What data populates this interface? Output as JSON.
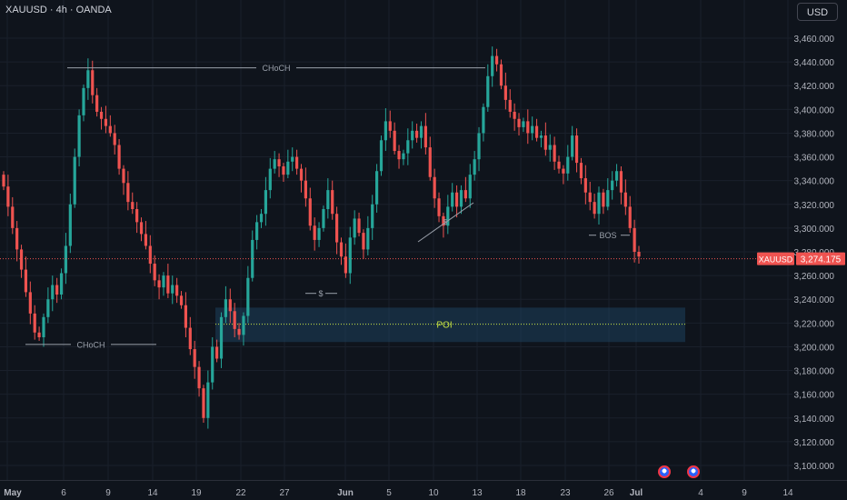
{
  "header": {
    "symbol_info": "XAUUSD · 4h · OANDA",
    "currency_button": "USD"
  },
  "price_tag": {
    "symbol": "XAUUSD",
    "value": "3,274.175"
  },
  "colors": {
    "bg": "#0f141c",
    "up": "#26a69a",
    "down": "#ef5350",
    "grid": "#1a202b",
    "axis_text": "#b2b5be",
    "price_line": "#ef5350",
    "poi_zone": "#1e4a6b",
    "poi_line": "#c6e142",
    "annotation": "#9aa0aa"
  },
  "icons": [
    "us-flag-icon",
    "us-flag-icon"
  ],
  "chart_data": {
    "type": "candlestick",
    "title": "XAUUSD · 4h · OANDA",
    "ylim": [
      3090,
      3470
    ],
    "y_ticks": [
      3100,
      3120,
      3140,
      3160,
      3180,
      3200,
      3220,
      3240,
      3260,
      3280,
      3300,
      3320,
      3340,
      3360,
      3380,
      3400,
      3420,
      3440,
      3460
    ],
    "y_tick_labels": [
      "3,100.000",
      "3,120.000",
      "3,140.000",
      "3,160.000",
      "3,180.000",
      "3,200.000",
      "3,220.000",
      "3,240.000",
      "3,260.000",
      "3,280.000",
      "3,300.000",
      "3,320.000",
      "3,340.000",
      "3,360.000",
      "3,380.000",
      "3,400.000",
      "3,420.000",
      "3,440.000",
      "3,460.000"
    ],
    "x_labels": [
      "May",
      "6",
      "9",
      "14",
      "19",
      "22",
      "27",
      "Jun",
      "5",
      "10",
      "13",
      "18",
      "23",
      "26",
      "Jul",
      "4",
      "9",
      "14"
    ],
    "last_price": 3274.175,
    "closes": [
      3335,
      3318,
      3300,
      3282,
      3265,
      3246,
      3228,
      3212,
      3208,
      3225,
      3240,
      3252,
      3244,
      3262,
      3285,
      3320,
      3360,
      3395,
      3418,
      3433,
      3412,
      3398,
      3392,
      3386,
      3380,
      3370,
      3350,
      3338,
      3322,
      3316,
      3305,
      3295,
      3285,
      3270,
      3256,
      3250,
      3260,
      3245,
      3252,
      3243,
      3235,
      3216,
      3198,
      3183,
      3165,
      3140,
      3170,
      3200,
      3190,
      3225,
      3240,
      3230,
      3215,
      3210,
      3226,
      3258,
      3290,
      3305,
      3312,
      3332,
      3350,
      3358,
      3352,
      3345,
      3356,
      3360,
      3350,
      3340,
      3325,
      3302,
      3290,
      3300,
      3316,
      3332,
      3312,
      3288,
      3276,
      3262,
      3292,
      3308,
      3296,
      3282,
      3300,
      3320,
      3348,
      3374,
      3390,
      3382,
      3365,
      3358,
      3363,
      3374,
      3382,
      3376,
      3386,
      3368,
      3343,
      3325,
      3310,
      3302,
      3318,
      3330,
      3318,
      3332,
      3325,
      3345,
      3358,
      3380,
      3402,
      3428,
      3445,
      3438,
      3420,
      3408,
      3398,
      3392,
      3385,
      3390,
      3380,
      3386,
      3376,
      3378,
      3366,
      3370,
      3356,
      3350,
      3346,
      3360,
      3378,
      3355,
      3342,
      3330,
      3322,
      3312,
      3330,
      3318,
      3332,
      3340,
      3348,
      3330,
      3318,
      3300,
      3280,
      3276
    ],
    "annotations": [
      {
        "label": "CHoCH",
        "type": "level",
        "price": 3435
      },
      {
        "label": "CHoCH",
        "type": "level",
        "price": 3202
      },
      {
        "label": "$",
        "type": "level",
        "price": 3245
      },
      {
        "label": "$",
        "type": "trendline"
      },
      {
        "label": "BOS",
        "type": "level",
        "price": 3294
      },
      {
        "label": "POI",
        "type": "zone",
        "price_from": 3204,
        "price_to": 3233,
        "mid": 3219
      }
    ]
  }
}
